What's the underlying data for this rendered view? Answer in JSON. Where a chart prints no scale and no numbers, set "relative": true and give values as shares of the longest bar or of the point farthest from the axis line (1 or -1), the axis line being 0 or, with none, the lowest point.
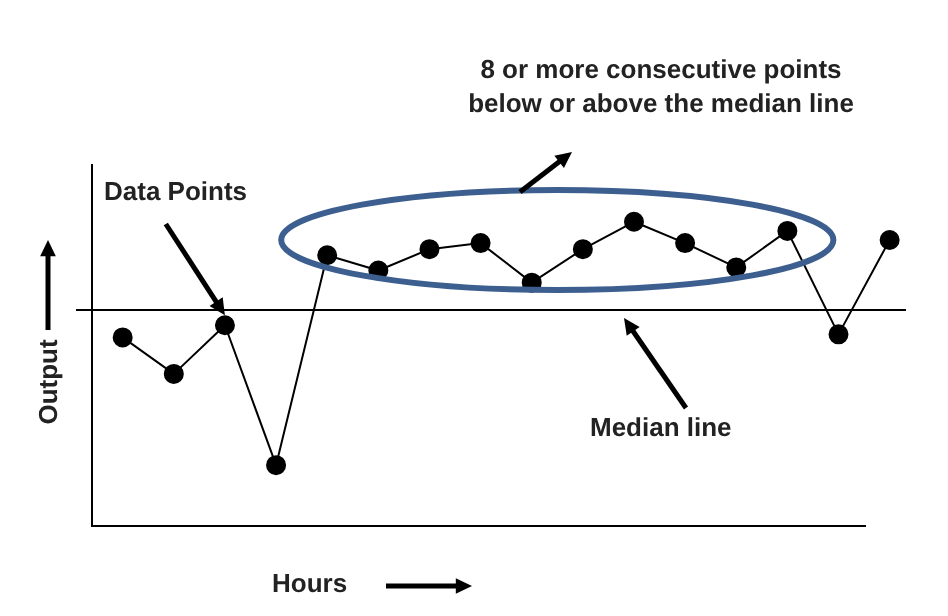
{
  "chart_data": {
    "type": "line",
    "relative": true,
    "xlabel": "Hours",
    "ylabel": "Output",
    "categories": [
      null,
      null,
      null,
      null,
      null,
      null,
      null,
      null,
      null,
      null,
      null,
      null,
      null,
      null,
      null,
      null
    ],
    "series": [
      {
        "color": "#000000",
        "values": [
          0.62,
          0.5,
          0.66,
          0.2,
          0.89,
          0.84,
          0.91,
          0.93,
          0.8,
          0.91,
          1,
          0.93,
          0.85,
          0.97,
          0.63,
          0.94
        ]
      }
    ],
    "ref_lines": [
      {
        "axis": "y",
        "value": 0.71,
        "label": "Median line",
        "color": "#000000"
      }
    ],
    "annotations": [
      "Data Points",
      "8 or more consecutive points below or above the median line"
    ],
    "marker": "circle",
    "line_style": "solid",
    "legend": false
  }
}
